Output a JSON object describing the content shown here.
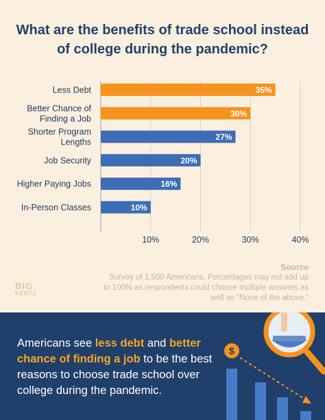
{
  "title": "What are the benefits of trade school instead of college during the pandemic?",
  "chart_data": {
    "type": "bar",
    "orientation": "horizontal",
    "title": "What are the benefits of trade school instead of college during the pandemic?",
    "categories": [
      "Less Debt",
      "Better Chance of Finding a Job",
      "Shorter Program Lengths",
      "Job Security",
      "Higher Paying Jobs",
      "In-Person Classes"
    ],
    "category_lines": [
      [
        "Less Debt"
      ],
      [
        "Better Chance of",
        "Finding a Job"
      ],
      [
        "Shorter Program",
        "Lengths"
      ],
      [
        "Job Security"
      ],
      [
        "Higher Paying Jobs"
      ],
      [
        "In-Person Classes"
      ]
    ],
    "values": [
      35,
      30,
      27,
      20,
      16,
      10
    ],
    "value_labels": [
      "35%",
      "30%",
      "27%",
      "20%",
      "16%",
      "10%"
    ],
    "bar_colors": [
      "#f6931e",
      "#f6931e",
      "#3d6db4",
      "#3d6db4",
      "#3d6db4",
      "#3d6db4"
    ],
    "xlim": [
      0,
      40
    ],
    "xticks": [
      10,
      20,
      30,
      40
    ],
    "xtick_labels": [
      "10%",
      "20%",
      "30%",
      "40%"
    ],
    "grid": true,
    "xlabel": "",
    "ylabel": ""
  },
  "source": {
    "heading": "Source",
    "text": "Survey of 1,500 Americans. Percentages may not add up to 100% as respondents could choose multiple answers as well as “None of the above.”"
  },
  "logo": {
    "line1": "BIG",
    "line2": "RENTZ"
  },
  "summary": {
    "part1": "Americans see ",
    "hl1": "less debt",
    "part2": " and ",
    "hl2": "better chance of finding a job",
    "part3": " to be the best reasons to choose trade school over college during the pandemic."
  },
  "illustration": {
    "coin_symbol": "$"
  },
  "colors": {
    "background": "#fbf0df",
    "navy": "#203f6a",
    "orange": "#f6931e",
    "blue": "#3d6db4",
    "source_text": "#c7b59d"
  }
}
